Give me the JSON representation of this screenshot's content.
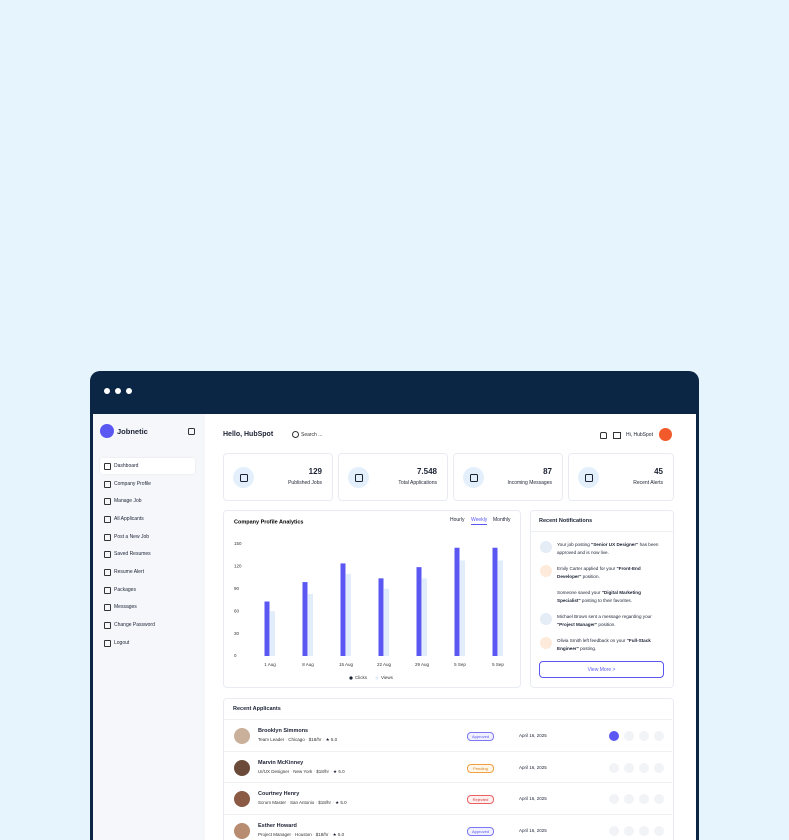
{
  "sidebar": {
    "brand": "Jobnetic",
    "menu": [
      "Dashboard",
      "Company Profile",
      "Manage Job",
      "All Applicants",
      "Post a New Job",
      "Saved Resumes",
      "Resume Alert",
      "Packages",
      "Messages",
      "Change Password",
      "Logout"
    ]
  },
  "header": {
    "greeting": "Hello, HubSpot",
    "search": "Search ...",
    "user": "Hi, HubSpot"
  },
  "stats": [
    {
      "value": "129",
      "label": "Published Jobs"
    },
    {
      "value": "7.548",
      "label": "Total Applications"
    },
    {
      "value": "87",
      "label": "Incoming Messages"
    },
    {
      "value": "45",
      "label": "Recent Alerts"
    }
  ],
  "chart_data": {
    "type": "bar",
    "title": "Company Profile Analytics",
    "tabs": [
      "Hourly",
      "Weekly",
      "Monthly"
    ],
    "categories": [
      "1 Aug",
      "8 Aug",
      "15 Aug",
      "22 Aug",
      "29 Aug",
      "5 Sep",
      "5 Sep"
    ],
    "series": [
      {
        "name": "Clicks",
        "color": "#5b57f2",
        "values": [
          73,
          99,
          124,
          104,
          119,
          145,
          145
        ]
      },
      {
        "name": "Views",
        "color": "#e2edfb",
        "values": [
          60,
          83,
          110,
          90,
          104,
          128,
          128
        ]
      }
    ],
    "ylim": [
      0,
      150
    ],
    "yticks": [
      0,
      30,
      60,
      90,
      120,
      150
    ]
  },
  "notifications": {
    "title": "Recent Notifications",
    "items": [
      [
        "Your job posting ",
        "\"Senior UX Designer\"",
        " has been approved and is now live."
      ],
      [
        "Emily Carter applied for your ",
        "\"Front-End Developer\"",
        " position."
      ],
      [
        "Someone saved your ",
        "\"Digital Marketing Specialist\"",
        " posting to their favorites."
      ],
      [
        "Michael Brown sent a message regarding your ",
        "\"Project Manager\"",
        " position."
      ],
      [
        "Olivia Smith left feedback on your ",
        "\"Full-Stack Engineer\"",
        " posting."
      ]
    ],
    "button": "View More >"
  },
  "applicants": {
    "title": "Recent Applicants",
    "rows": [
      {
        "name": "Brooklyn Simmons",
        "role": "Team Leader",
        "location": "Chicago",
        "rate": "$18/hr",
        "rating": "5.0",
        "status": "Approved",
        "date": "April 16, 2025"
      },
      {
        "name": "Marvin McKinney",
        "role": "UI/UX Designer",
        "location": "New York",
        "rate": "$18/hr",
        "rating": "5.0",
        "status": "Pending",
        "date": "April 16, 2025"
      },
      {
        "name": "Courtney Henry",
        "role": "Scrum Master",
        "location": "San Antonio",
        "rate": "$18/hr",
        "rating": "5.0",
        "status": "Rejected",
        "date": "April 16, 2025"
      },
      {
        "name": "Esther Howard",
        "role": "Project Manager",
        "location": "Houston",
        "rate": "$18/hr",
        "rating": "5.0",
        "status": "Approved",
        "date": "April 16, 2025"
      }
    ]
  }
}
